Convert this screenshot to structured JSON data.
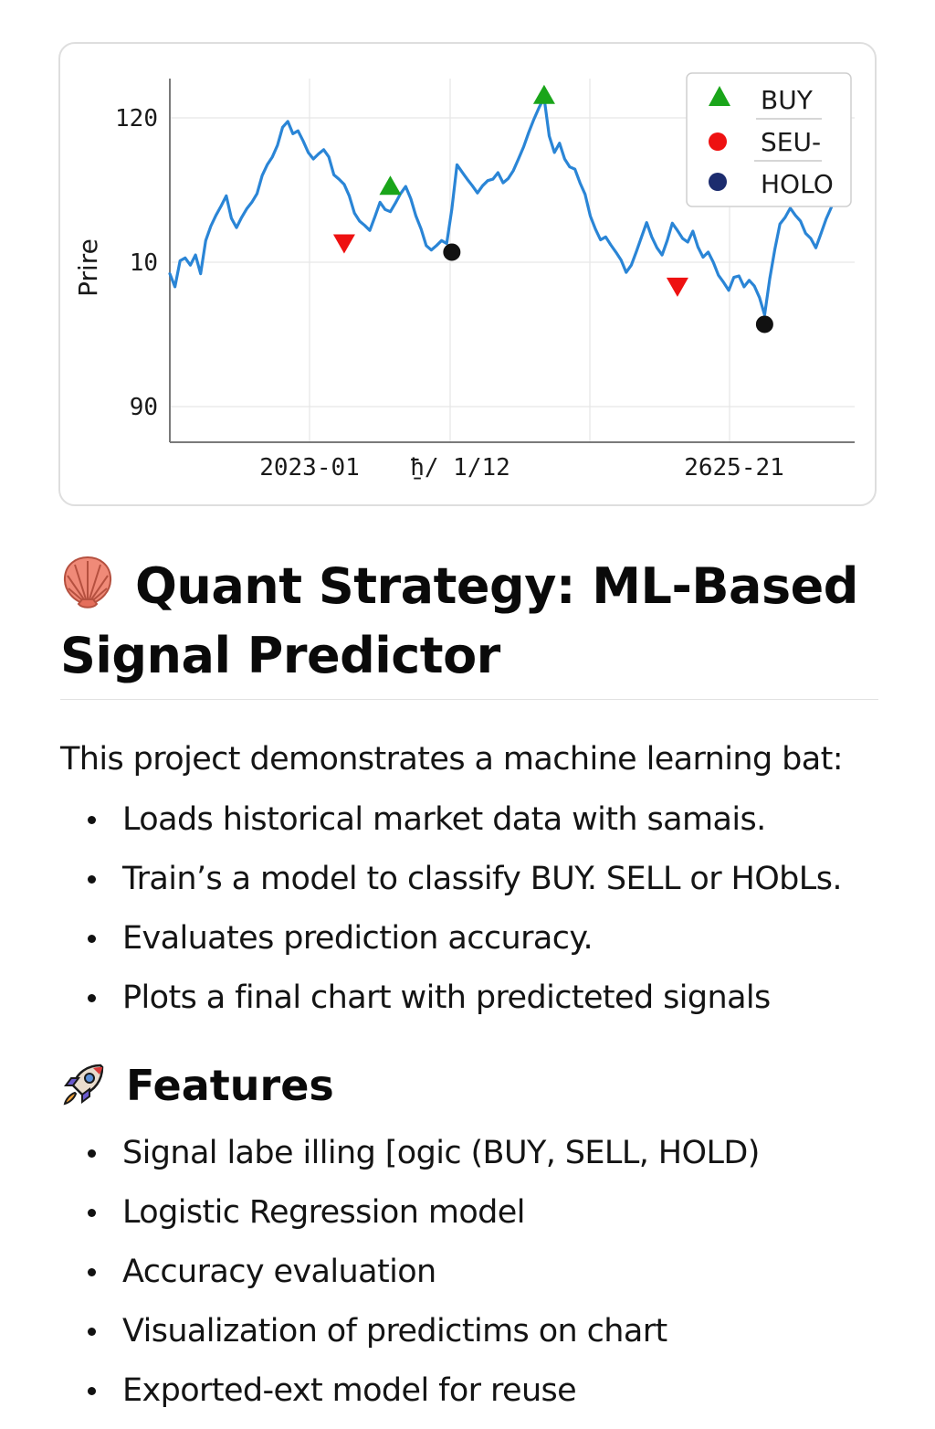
{
  "chart_data": {
    "type": "line",
    "ylabel": "Prire",
    "xlabel": "",
    "yticks": [
      "120",
      "10",
      "90"
    ],
    "xticks": [
      "2023-01",
      "̱ħ/ 1/12",
      "2625-21"
    ],
    "series": [
      {
        "values": [
          -1.6,
          -3.4,
          0.2,
          0.6,
          -0.4,
          1.0,
          -1.6,
          3.0,
          5.0,
          6.5,
          7.8,
          9.2,
          6.1,
          4.8,
          6.2,
          7.4,
          8.3,
          9.5,
          12.0,
          13.5,
          14.6,
          16.2,
          18.7,
          19.5,
          17.8,
          18.2,
          16.8,
          15.2,
          14.3,
          15.0,
          15.6,
          14.6,
          12.1,
          11.5,
          10.8,
          9.2,
          6.8,
          5.7,
          5.1,
          4.4,
          6.3,
          8.3,
          7.3,
          7.0,
          8.2,
          9.5,
          10.5,
          8.8,
          6.4,
          4.6,
          2.3,
          1.7,
          2.3,
          3.0,
          2.6,
          7.3,
          13.5,
          12.5,
          11.5,
          10.6,
          9.6,
          10.6,
          11.3,
          11.5,
          12.4,
          11.0,
          11.6,
          12.7,
          14.3,
          16.0,
          18.0,
          19.8,
          21.4,
          22.8,
          17.5,
          15.2,
          16.5,
          14.3,
          13.2,
          12.9,
          11.0,
          9.4,
          6.4,
          4.6,
          3.1,
          3.5,
          2.4,
          1.4,
          0.3,
          -1.4,
          -0.4,
          1.5,
          3.5,
          5.5,
          3.5,
          2.0,
          1.0,
          3.0,
          5.4,
          4.4,
          3.3,
          2.8,
          4.3,
          2.1,
          0.7,
          1.4,
          0.0,
          -1.8,
          -2.8,
          -3.9,
          -2.1,
          -1.9,
          -3.4,
          -2.5,
          -3.3,
          -4.9,
          -7.3,
          -2.3,
          1.8,
          5.3,
          6.2,
          7.5,
          6.5,
          5.7,
          4.0,
          3.3,
          2.0,
          4.0,
          6.0,
          7.6,
          9.5
        ],
        "color": "#2a85d6"
      }
    ],
    "signals": [
      {
        "type": "BUY",
        "x": 43,
        "y": 10.6
      },
      {
        "type": "BUY",
        "x": 73,
        "y": 23.2
      },
      {
        "type": "SELL",
        "x": 34,
        "y": 2.6
      },
      {
        "type": "SELL",
        "x": 99,
        "y": -3.4
      },
      {
        "type": "HOLD",
        "x": 55,
        "y": 1.4
      },
      {
        "type": "HOLD",
        "x": 116,
        "y": -8.6
      }
    ],
    "legend": {
      "position": "top-right",
      "entries": [
        {
          "label": "BUY",
          "marker": "triangle-up",
          "color": "#1aa51a"
        },
        {
          "label": "SEU-",
          "marker": "circle",
          "color": "#ee1111"
        },
        {
          "label": "HOLO",
          "marker": "circle",
          "color": "#1c2c6e"
        }
      ]
    },
    "signal_colors": {
      "BUY": "#1aa51a",
      "SELL": "#ee1111",
      "HOLD": "#111111"
    },
    "grid": true
  },
  "title": "Quant Strategy: ML-Based Signal Predictor",
  "title_icon": "shell-icon",
  "intro": "This project demonstrates a machine learning bat:",
  "intro_items": [
    "Loads historical market data with samais.",
    "Train’s a model to classify BUY. SELL or HObLs.",
    "Evaluates prediction accuracy.",
    "Plots a final chart with predicteted signals"
  ],
  "features_heading": "Features",
  "features_icon": "rocket-icon",
  "features": [
    "Signal labe illing [ogic (BUY, SELL, HOLD)",
    "Logistic Regression model",
    "Accuracy evaluation",
    "Visualization of predictims on chart",
    "Exported-ext model for reuse"
  ]
}
